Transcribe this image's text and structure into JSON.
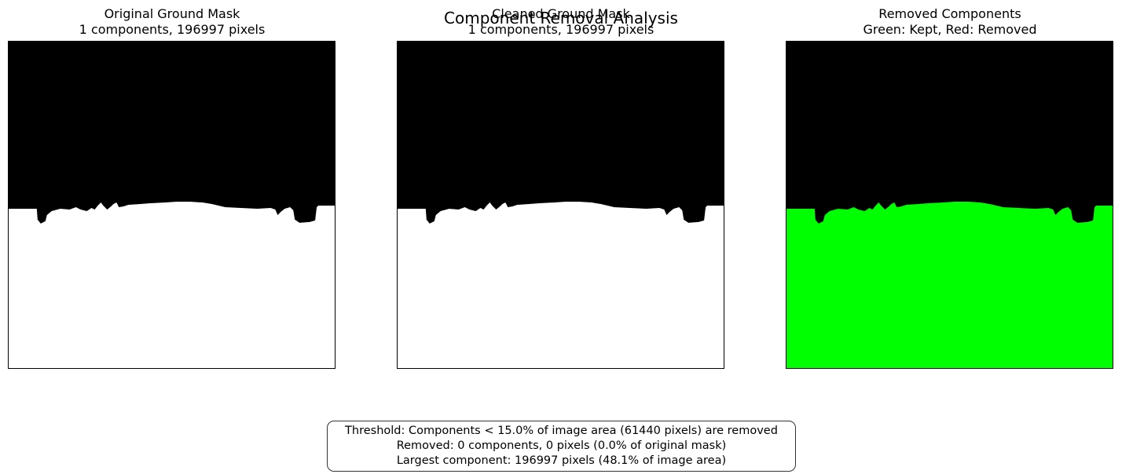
{
  "figure": {
    "title": "Component Removal Analysis"
  },
  "panels": [
    {
      "title": "Original Ground Mask",
      "subtitle": "1 components, 196997 pixels"
    },
    {
      "title": "Cleaned Ground Mask",
      "subtitle": "1 components, 196997 pixels"
    },
    {
      "title": "Removed Components",
      "subtitle": "Green: Kept, Red: Removed"
    }
  ],
  "colors": {
    "background": "#000000",
    "ground": "#ffffff",
    "kept": "#00ff00",
    "removed": "#ff0000"
  },
  "info": {
    "line1": "Threshold: Components < 15.0% of image area (61440 pixels) are removed",
    "line2": "Removed: 0 components, 0 pixels (0.0% of original mask)",
    "line3": "Largest component: 196997 pixels (48.1% of image area)"
  }
}
